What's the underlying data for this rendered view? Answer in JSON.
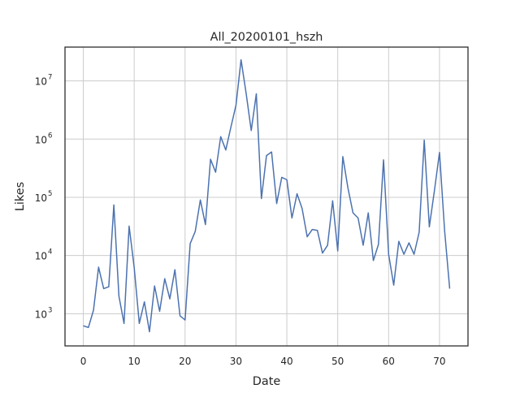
{
  "chart_data": {
    "type": "line",
    "title": "All_20200101_hszh",
    "xlabel": "Date",
    "ylabel": "Likes",
    "x_ticks": [
      0,
      10,
      20,
      30,
      40,
      50,
      60,
      70
    ],
    "x_tick_labels": [
      "0",
      "10",
      "20",
      "30",
      "40",
      "50",
      "60",
      "70"
    ],
    "y_ticks": [
      1000,
      10000,
      100000,
      1000000,
      10000000
    ],
    "y_tick_labels": [
      {
        "base": "10",
        "exp": "3"
      },
      {
        "base": "10",
        "exp": "4"
      },
      {
        "base": "10",
        "exp": "5"
      },
      {
        "base": "10",
        "exp": "6"
      },
      {
        "base": "10",
        "exp": "7"
      }
    ],
    "xlim": [
      -3.6,
      75.6
    ],
    "ylim": [
      280,
      38000000
    ],
    "y_scale": "log",
    "grid": true,
    "series": [
      {
        "color": "#4c72b0",
        "x": [
          0,
          1,
          2,
          3,
          4,
          5,
          6,
          7,
          8,
          9,
          10,
          11,
          12,
          13,
          14,
          15,
          16,
          17,
          18,
          19,
          20,
          21,
          22,
          23,
          24,
          25,
          26,
          27,
          28,
          29,
          30,
          31,
          32,
          33,
          34,
          35,
          36,
          37,
          38,
          39,
          40,
          41,
          42,
          43,
          44,
          45,
          46,
          47,
          48,
          49,
          50,
          51,
          52,
          53,
          54,
          55,
          56,
          57,
          58,
          59,
          60,
          61,
          62,
          63,
          64,
          65,
          66,
          67,
          68,
          69,
          70,
          71,
          72
        ],
        "y": [
          620,
          580,
          1150,
          6300,
          2700,
          2900,
          74000,
          2000,
          680,
          32000,
          6200,
          680,
          1600,
          490,
          3000,
          1100,
          4000,
          1800,
          5700,
          920,
          780,
          16000,
          26000,
          90000,
          34000,
          450000,
          270000,
          1100000,
          650000,
          1600000,
          3800000,
          23000000,
          6100000,
          1400000,
          6000000,
          95000,
          520000,
          600000,
          78000,
          220000,
          200000,
          44000,
          115000,
          64000,
          21000,
          28000,
          27000,
          11000,
          15000,
          87000,
          12000,
          500000,
          145000,
          54000,
          44000,
          15000,
          54000,
          8200,
          15500,
          440000,
          10500,
          3100,
          17500,
          10500,
          16500,
          10500,
          25000,
          960000,
          31000,
          130000,
          590000,
          27000,
          2700
        ]
      }
    ]
  }
}
